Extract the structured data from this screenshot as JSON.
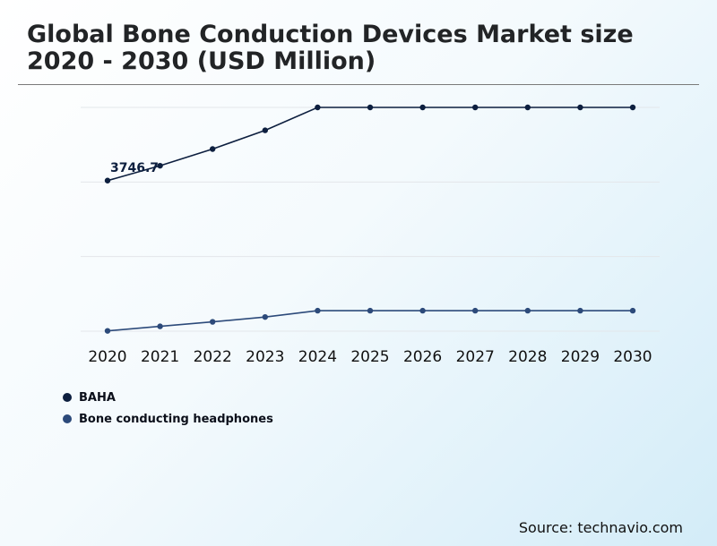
{
  "header": {
    "title_line1": "Global Bone Conduction Devices Market size",
    "title_line2": "2020 - 2030 (USD Million)"
  },
  "chart_data": {
    "type": "line",
    "title": "Global Bone Conduction Devices Market size 2020 - 2030 (USD Million)",
    "x": [
      "2020",
      "2021",
      "2022",
      "2023",
      "2024",
      "2025",
      "2026",
      "2027",
      "2028",
      "2029",
      "2030"
    ],
    "series": [
      {
        "name": "BAHA",
        "color": "#0d1f3f",
        "values": [
          3746.7,
          3993,
          4270,
          4580,
          4960,
          4960,
          4960,
          4960,
          4960,
          4960,
          4960
        ]
      },
      {
        "name": "Bone conducting headphones",
        "color": "#2c4a7a",
        "values": [
          1255,
          1330,
          1405,
          1485,
          1590,
          1590,
          1590,
          1590,
          1590,
          1590,
          1590
        ]
      }
    ],
    "annotations": [
      {
        "series": "BAHA",
        "x": "2020",
        "text": "3746.7"
      }
    ],
    "ylim": [
      1250,
      4960
    ],
    "grid": true,
    "y_tick_labels_shown": false,
    "legend_position": "bottom-left"
  },
  "footer": {
    "source": "Source: technavio.com"
  }
}
